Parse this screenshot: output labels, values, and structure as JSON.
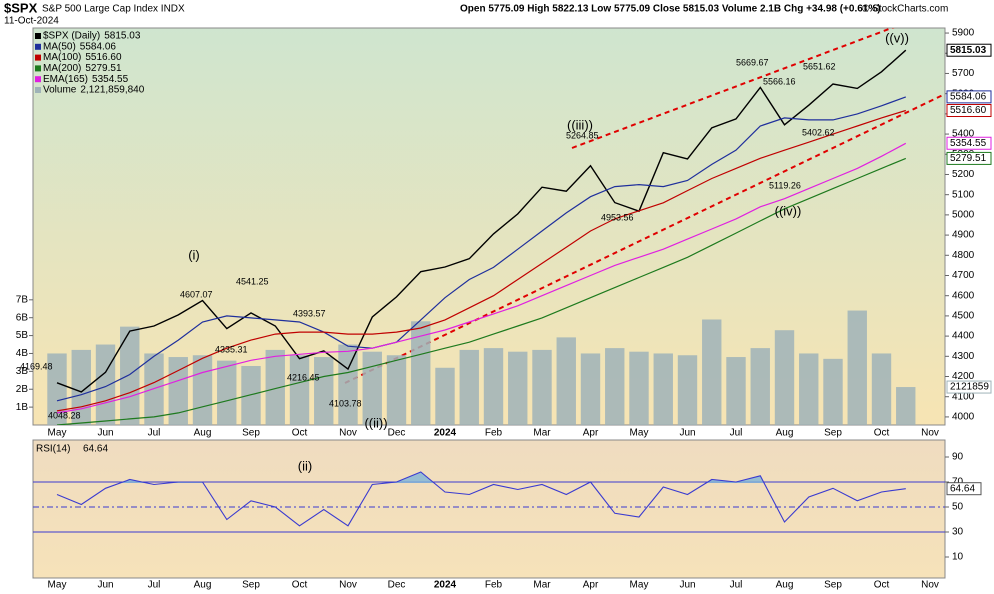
{
  "chart_data": [
    {
      "type": "line",
      "title": "$SPX",
      "subtitle": "S&P 500 Large Cap Index INDX",
      "date": "11-Oct-2024",
      "quote": "Open 5775.09 High 5822.13 Low 5775.09 Close 5815.03 Volume 2.1B Chg +34.98 (+0.61%)",
      "credit": "© StockCharts.com",
      "categories": [
        "May",
        null,
        "Jun",
        null,
        "Jul",
        null,
        "Aug",
        null,
        "Sep",
        null,
        "Oct",
        null,
        "Nov",
        null,
        "Dec",
        null,
        "2024",
        null,
        "Feb",
        null,
        "Mar",
        null,
        "Apr",
        null,
        "May",
        null,
        "Jun",
        null,
        "Jul",
        null,
        "Aug",
        null,
        "Sep",
        null,
        "Oct",
        null,
        "Nov"
      ],
      "ylim": [
        3960,
        5925
      ],
      "yticks": [
        4000,
        4100,
        4200,
        4300,
        4400,
        4500,
        4600,
        4700,
        4800,
        4900,
        5000,
        5100,
        5200,
        5300,
        5400,
        5500,
        5600,
        5700,
        5800,
        5900
      ],
      "y2lim": [
        0,
        22200000000
      ],
      "y2ticks": [
        {
          "value": 1000000000,
          "label": "1B"
        },
        {
          "value": 2000000000,
          "label": "2B"
        },
        {
          "value": 3000000000,
          "label": "3B"
        },
        {
          "value": 4000000000,
          "label": "4B"
        },
        {
          "value": 5000000000,
          "label": "5B"
        },
        {
          "value": 6000000000,
          "label": "6B"
        },
        {
          "value": 7000000000,
          "label": "7B"
        }
      ],
      "series": [
        {
          "name": "$SPX (Daily)",
          "color": "#000000",
          "last": 5815.03,
          "values": [
            4169,
            4124,
            4221,
            4425,
            4450,
            4505,
            4576,
            4437,
            4515,
            4450,
            4288,
            4327,
            4237,
            4495,
            4594,
            4719,
            4742,
            4783,
            4906,
            5005,
            5137,
            5117,
            5243,
            5061,
            5018,
            5308,
            5277,
            5431,
            5475,
            5631,
            5446,
            5543,
            5648,
            5626,
            5708,
            5815.03,
            null
          ]
        },
        {
          "name": "MA(50)",
          "color": "#1f2f9c",
          "last": 5584.06,
          "values": [
            4080,
            4110,
            4150,
            4210,
            4300,
            4380,
            4470,
            4500,
            4490,
            4480,
            4470,
            4420,
            4350,
            4340,
            4370,
            4480,
            4590,
            4680,
            4740,
            4830,
            4920,
            5010,
            5090,
            5140,
            5150,
            5140,
            5170,
            5250,
            5320,
            5440,
            5480,
            5470,
            5470,
            5500,
            5540,
            5584.06,
            null
          ]
        },
        {
          "name": "MA(100)",
          "color": "#c00000",
          "last": 5516.6,
          "last_label": "5516.60",
          "values": [
            4030,
            4050,
            4080,
            4120,
            4170,
            4230,
            4290,
            4340,
            4380,
            4410,
            4420,
            4420,
            4410,
            4410,
            4420,
            4440,
            4480,
            4540,
            4600,
            4680,
            4760,
            4840,
            4920,
            4980,
            5020,
            5060,
            5120,
            5180,
            5230,
            5280,
            5320,
            5360,
            5400,
            5440,
            5480,
            5516.6,
            null
          ]
        },
        {
          "name": "MA(200)",
          "color": "#1e7a1e",
          "last": 5279.51,
          "values": [
            3960,
            3970,
            3980,
            3990,
            4000,
            4020,
            4050,
            4080,
            4110,
            4140,
            4170,
            4200,
            4220,
            4250,
            4280,
            4310,
            4340,
            4370,
            4410,
            4450,
            4490,
            4540,
            4590,
            4640,
            4690,
            4740,
            4790,
            4850,
            4910,
            4970,
            5030,
            5080,
            5130,
            5180,
            5230,
            5279.51,
            null
          ]
        },
        {
          "name": "EMA(165)",
          "color": "#e020e0",
          "last": 5354.55,
          "values": [
            4020,
            4040,
            4070,
            4100,
            4140,
            4180,
            4220,
            4250,
            4280,
            4300,
            4310,
            4320,
            4325,
            4340,
            4370,
            4400,
            4430,
            4470,
            4510,
            4550,
            4600,
            4650,
            4700,
            4750,
            4790,
            4830,
            4880,
            4930,
            4980,
            5040,
            5080,
            5130,
            5180,
            5230,
            5290,
            5354.55,
            null
          ]
        },
        {
          "name": "Volume",
          "color": "#9fb3b8",
          "axis": "y2",
          "last": 2121859840,
          "last_label": "2,121,859,840",
          "tag_label": "2121859",
          "values": [
            4000000000,
            4200000000,
            4500000000,
            5500000000,
            4000000000,
            3800000000,
            3900000000,
            3600000000,
            3300000000,
            4200000000,
            3900000000,
            3800000000,
            4500000000,
            4100000000,
            3900000000,
            5800000000,
            3200000000,
            4200000000,
            4300000000,
            4100000000,
            4200000000,
            4900000000,
            4000000000,
            4300000000,
            4100000000,
            4000000000,
            3900000000,
            5900000000,
            3800000000,
            4300000000,
            5300000000,
            4000000000,
            3700000000,
            6400000000,
            4000000000,
            2121859840,
            null
          ]
        }
      ],
      "price_labels": [
        4169.48,
        4048.28,
        4607.07,
        4541.25,
        4335.31,
        4393.57,
        4216.45,
        4103.78,
        5264.85,
        4953.56,
        5669.67,
        5566.16,
        5651.62,
        5402.62,
        5119.26
      ],
      "annotations": [
        {
          "text": "(i)"
        },
        {
          "text": "(ii)"
        },
        {
          "text": "((iii))"
        },
        {
          "text": "((iv))"
        },
        {
          "text": "((v))"
        },
        {
          "text": "((ii))"
        }
      ]
    },
    {
      "type": "line",
      "categories": [
        "May",
        null,
        "Jun",
        null,
        "Jul",
        null,
        "Aug",
        null,
        "Sep",
        null,
        "Oct",
        null,
        "Nov",
        null,
        "Dec",
        null,
        "2024",
        null,
        "Feb",
        null,
        "Mar",
        null,
        "Apr",
        null,
        "May",
        null,
        "Jun",
        null,
        "Jul",
        null,
        "Aug",
        null,
        "Sep",
        null,
        "Oct",
        null,
        "Nov"
      ],
      "ylim": [
        -6.8,
        103.6
      ],
      "yticks": [
        10,
        30,
        50,
        70,
        90
      ],
      "levels": [
        30,
        50,
        70
      ],
      "series": [
        {
          "name": "RSI(14)",
          "color": "#3a3ad0",
          "last": 64.64,
          "values": [
            60,
            52,
            65,
            72,
            68,
            70,
            70,
            40,
            55,
            50,
            35,
            48,
            35,
            68,
            70,
            78,
            62,
            60,
            68,
            64,
            68,
            60,
            70,
            45,
            42,
            66,
            60,
            72,
            70,
            75,
            38,
            58,
            65,
            55,
            62,
            64.64,
            null
          ]
        }
      ]
    }
  ]
}
